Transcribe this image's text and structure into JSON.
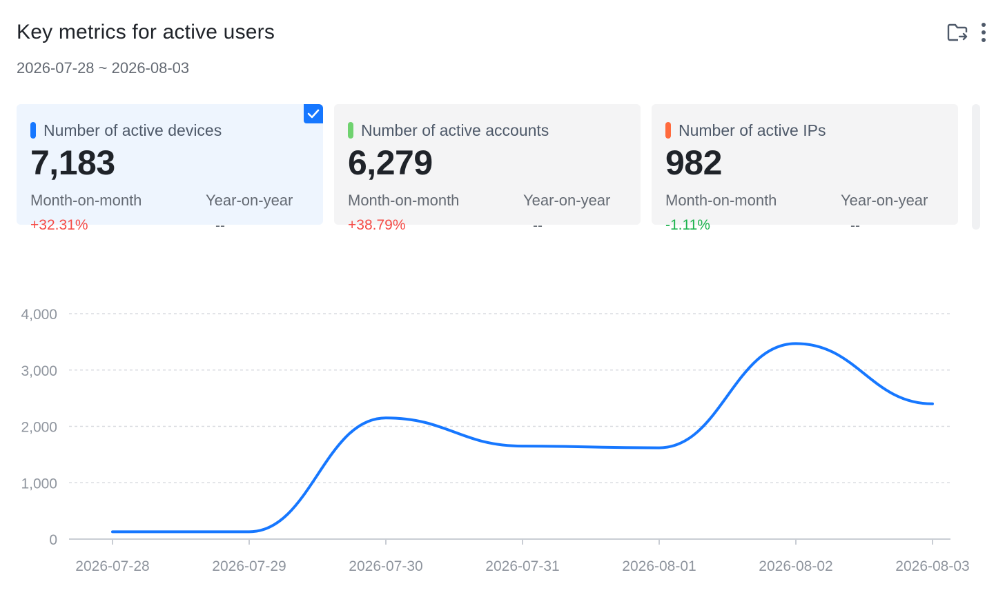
{
  "header": {
    "title": "Key metrics for active users",
    "date_range": "2026-07-28 ~ 2026-08-03",
    "export_icon": "folder-export-icon",
    "more_icon": "more-vertical-icon"
  },
  "cards": [
    {
      "label": "Number of active devices",
      "value": "7,183",
      "mom_label": "Month-on-month",
      "mom_value": "+32.31%",
      "yoy_label": "Year-on-year",
      "yoy_value": "--",
      "color": "#1677ff",
      "selected": true
    },
    {
      "label": "Number of active accounts",
      "value": "6,279",
      "mom_label": "Month-on-month",
      "mom_value": "+38.79%",
      "yoy_label": "Year-on-year",
      "yoy_value": "--",
      "color": "#6fd26f",
      "selected": false
    },
    {
      "label": "Number of active IPs",
      "value": "982",
      "mom_label": "Month-on-month",
      "mom_value": "-1.11%",
      "yoy_label": "Year-on-year",
      "yoy_value": "--",
      "color": "#ff6a3d",
      "selected": false
    }
  ],
  "colors": {
    "accent": "#1677ff",
    "positive_change": "#f54a45",
    "negative_change": "#1cb34d"
  },
  "chart_data": {
    "type": "line",
    "x": [
      "2026-07-28",
      "2026-07-29",
      "2026-07-30",
      "2026-07-31",
      "2026-08-01",
      "2026-08-02",
      "2026-08-03"
    ],
    "series": [
      {
        "name": "Number of active devices",
        "values": [
          130,
          130,
          2150,
          1650,
          1620,
          3470,
          2400
        ],
        "color": "#1677ff"
      }
    ],
    "yticks": [
      "0",
      "1,000",
      "2,000",
      "3,000",
      "4,000"
    ],
    "ylim": [
      0,
      4000
    ],
    "grid": true,
    "smooth": true
  }
}
